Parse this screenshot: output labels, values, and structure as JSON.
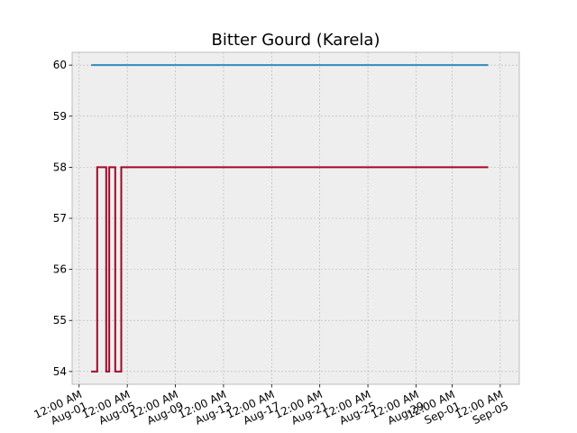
{
  "chart_data": {
    "type": "line",
    "title": "Bitter Gourd (Karela)",
    "xlabel": "",
    "ylabel": "",
    "x_axis": "date",
    "xlim": [
      "2023-07-31T10:00",
      "2023-09-06T14:00"
    ],
    "ylim": [
      53.75,
      60.25
    ],
    "grid": true,
    "legend": "none",
    "x_ticks": [
      {
        "date": "2023-08-01T00:00",
        "label": "12:00 AM\nAug-01"
      },
      {
        "date": "2023-08-05T00:00",
        "label": "12:00 AM\nAug-05"
      },
      {
        "date": "2023-08-09T00:00",
        "label": "12:00 AM\nAug-09"
      },
      {
        "date": "2023-08-13T00:00",
        "label": "12:00 AM\nAug-13"
      },
      {
        "date": "2023-08-17T00:00",
        "label": "12:00 AM\nAug-17"
      },
      {
        "date": "2023-08-21T00:00",
        "label": "12:00 AM\nAug-21"
      },
      {
        "date": "2023-08-25T00:00",
        "label": "12:00 AM\nAug-25"
      },
      {
        "date": "2023-08-29T00:00",
        "label": "12:00 AM\nAug-29"
      },
      {
        "date": "2023-09-01T00:00",
        "label": "12:00 AM\nSep-01"
      },
      {
        "date": "2023-09-05T00:00",
        "label": "12:00 AM\nSep-05"
      }
    ],
    "y_ticks": [
      54,
      55,
      56,
      57,
      58,
      59,
      60
    ],
    "series": [
      {
        "color": "#348ABD",
        "drawstyle": "steps-post",
        "points": [
          {
            "x": "2023-08-02T00:00",
            "y": 60
          },
          {
            "x": "2023-09-04T00:00",
            "y": 60
          }
        ]
      },
      {
        "color": "#A60628",
        "drawstyle": "steps-post",
        "points": [
          {
            "x": "2023-08-02T00:00",
            "y": 54
          },
          {
            "x": "2023-08-02T12:00",
            "y": 58
          },
          {
            "x": "2023-08-03T06:00",
            "y": 54
          },
          {
            "x": "2023-08-03T12:00",
            "y": 58
          },
          {
            "x": "2023-08-04T00:00",
            "y": 54
          },
          {
            "x": "2023-08-04T12:00",
            "y": 58
          },
          {
            "x": "2023-09-04T00:00",
            "y": 58
          }
        ]
      }
    ],
    "colors": {
      "background": "#EEEEEE",
      "grid": "#B2B2B2",
      "frame": "#BCBCBC"
    }
  }
}
